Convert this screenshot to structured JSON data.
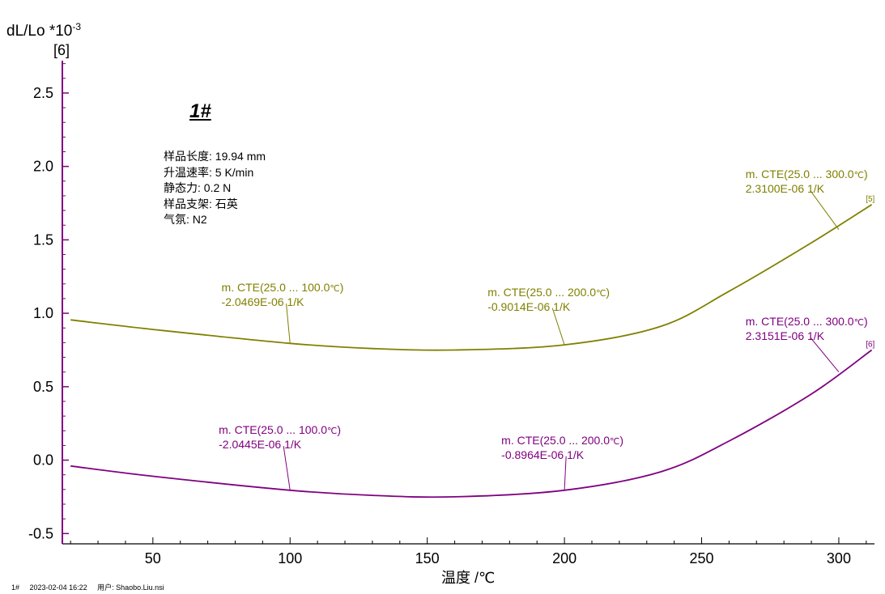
{
  "ylabel_main": "dL/Lo *10",
  "ylabel_exp": "-3",
  "ylabel_series": "[6]",
  "xlabel": "温度 /℃",
  "sample_title": "1#",
  "params": [
    "样品长度: 19.94 mm",
    "升温速率: 5 K/min",
    "静态力: 0.2 N",
    "样品支架: 石英",
    "气氛: N2"
  ],
  "footer": {
    "sample": "1#",
    "datetime": "2023-02-04 16:22",
    "user": "用户: Shaobo.Liu.nsi"
  },
  "colors": {
    "series5": "#808000",
    "series6": "#800080",
    "axis": "#800080"
  },
  "chart_data": {
    "type": "line",
    "xlabel": "温度 /℃",
    "ylabel": "dL/Lo *10-3",
    "xlim": [
      17,
      313
    ],
    "ylim": [
      -0.57,
      2.72
    ],
    "x_ticks": [
      50,
      100,
      150,
      200,
      250,
      300
    ],
    "y_ticks": [
      "2.5",
      "2.0",
      "1.5",
      "1.0",
      "0.5",
      "0.0",
      "-0.5"
    ],
    "grid": false,
    "series": [
      {
        "name": "[5]",
        "color": "#808000",
        "x": [
          20,
          50,
          100,
          130,
          160,
          200,
          235,
          260,
          290,
          312
        ],
        "y": [
          0.955,
          0.89,
          0.795,
          0.76,
          0.75,
          0.785,
          0.91,
          1.15,
          1.48,
          1.74
        ]
      },
      {
        "name": "[6]",
        "color": "#800080",
        "x": [
          20,
          50,
          100,
          130,
          160,
          200,
          235,
          260,
          290,
          312
        ],
        "y": [
          -0.04,
          -0.11,
          -0.205,
          -0.24,
          -0.25,
          -0.205,
          -0.08,
          0.13,
          0.45,
          0.75
        ]
      }
    ],
    "annotations": [
      {
        "series": "[5]",
        "x": 100,
        "y": 0.795,
        "label_x": 75,
        "label_y": 1.22,
        "line1": "m. CTE(25.0 ... 100.0",
        "unit": "℃",
        "close": ")",
        "line2": "-2.0469E-06 1/K"
      },
      {
        "series": "[5]",
        "x": 200,
        "y": 0.785,
        "label_x": 172,
        "label_y": 1.19,
        "line1": "m. CTE(25.0 ... 200.0",
        "unit": "℃",
        "close": ")",
        "line2": "-0.9014E-06 1/K"
      },
      {
        "series": "[5]",
        "x": 300,
        "y": 1.57,
        "label_x": 266,
        "label_y": 1.99,
        "line1": "m. CTE(25.0 ... 300.0",
        "unit": "℃",
        "close": ")",
        "line2": "2.3100E-06 1/K"
      },
      {
        "series": "[6]",
        "x": 100,
        "y": -0.205,
        "label_x": 74,
        "label_y": 0.25,
        "line1": "m. CTE(25.0 ... 100.0",
        "unit": "℃",
        "close": ")",
        "line2": "-2.0445E-06 1/K"
      },
      {
        "series": "[6]",
        "x": 200,
        "y": -0.205,
        "label_x": 177,
        "label_y": 0.18,
        "line1": "m. CTE(25.0 ... 200.0",
        "unit": "℃",
        "close": ")",
        "line2": "-0.8964E-06 1/K"
      },
      {
        "series": "[6]",
        "x": 300,
        "y": 0.6,
        "label_x": 266,
        "label_y": 0.99,
        "line1": "m. CTE(25.0 ... 300.0",
        "unit": "℃",
        "close": ")",
        "line2": "2.3151E-06 1/K"
      }
    ],
    "end_labels": [
      {
        "series": "[5]",
        "text": "[5]",
        "x": 311,
        "y": 1.74
      },
      {
        "series": "[6]",
        "text": "[6]",
        "x": 311,
        "y": 0.75
      }
    ]
  }
}
